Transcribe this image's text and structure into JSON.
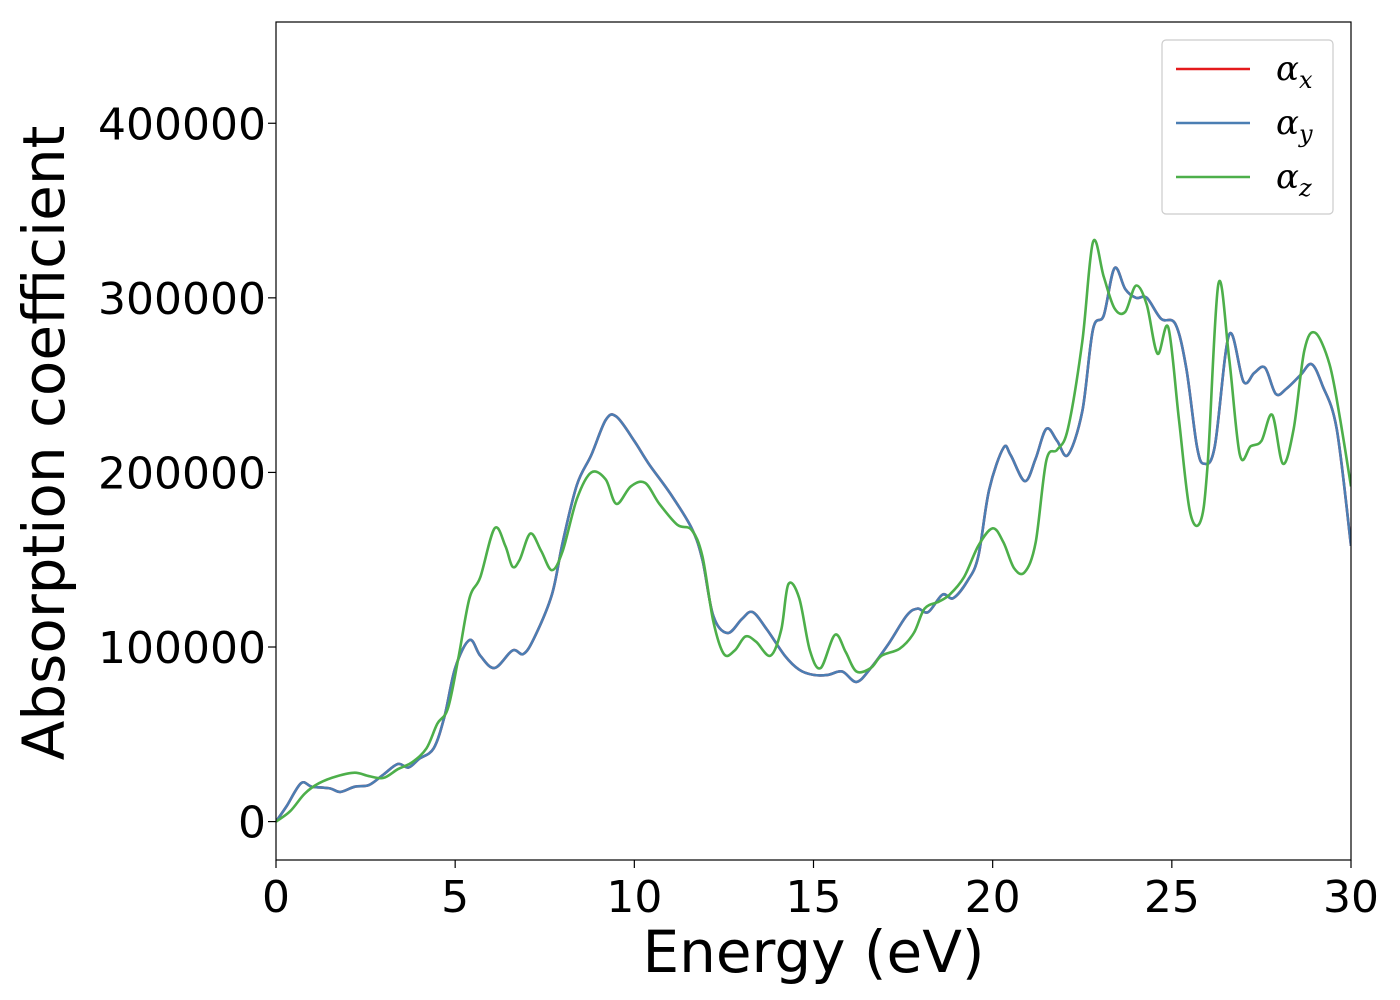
{
  "chart_data": {
    "type": "line",
    "title": "",
    "xlabel": "Energy (eV)",
    "ylabel": "Absorption coefficient",
    "xlim": [
      0,
      30
    ],
    "ylim": [
      -22000,
      458000
    ],
    "xticks": [
      0,
      5,
      10,
      15,
      20,
      25,
      30
    ],
    "yticks": [
      0,
      100000,
      200000,
      300000,
      400000
    ],
    "grid": false,
    "legend_position": "top-right",
    "series": [
      {
        "name": "α",
        "subscript": "x",
        "color": "#e41a1c",
        "points": [
          [
            0,
            0
          ],
          [
            0.3,
            9000
          ],
          [
            0.7,
            22000
          ],
          [
            1.0,
            20000
          ],
          [
            1.5,
            19000
          ],
          [
            1.8,
            17000
          ],
          [
            2.2,
            20000
          ],
          [
            2.6,
            21000
          ],
          [
            3.0,
            27000
          ],
          [
            3.4,
            33000
          ],
          [
            3.7,
            31000
          ],
          [
            4.0,
            36000
          ],
          [
            4.4,
            42000
          ],
          [
            4.7,
            60000
          ],
          [
            5.0,
            88000
          ],
          [
            5.4,
            104000
          ],
          [
            5.7,
            95000
          ],
          [
            6.1,
            88000
          ],
          [
            6.6,
            98000
          ],
          [
            6.9,
            96000
          ],
          [
            7.2,
            105000
          ],
          [
            7.7,
            130000
          ],
          [
            8.0,
            160000
          ],
          [
            8.4,
            193000
          ],
          [
            8.8,
            210000
          ],
          [
            9.2,
            230000
          ],
          [
            9.5,
            232000
          ],
          [
            10.0,
            218000
          ],
          [
            10.4,
            205000
          ],
          [
            11.0,
            188000
          ],
          [
            11.6,
            168000
          ],
          [
            11.9,
            150000
          ],
          [
            12.2,
            118000
          ],
          [
            12.6,
            108000
          ],
          [
            13.0,
            116000
          ],
          [
            13.3,
            120000
          ],
          [
            13.7,
            110000
          ],
          [
            14.2,
            95000
          ],
          [
            14.6,
            87000
          ],
          [
            15.0,
            84000
          ],
          [
            15.4,
            84000
          ],
          [
            15.8,
            86000
          ],
          [
            16.2,
            80000
          ],
          [
            16.6,
            88000
          ],
          [
            17.1,
            102000
          ],
          [
            17.6,
            118000
          ],
          [
            17.9,
            122000
          ],
          [
            18.2,
            120000
          ],
          [
            18.6,
            130000
          ],
          [
            18.9,
            128000
          ],
          [
            19.3,
            138000
          ],
          [
            19.6,
            152000
          ],
          [
            19.9,
            190000
          ],
          [
            20.3,
            214000
          ],
          [
            20.5,
            210000
          ],
          [
            20.9,
            195000
          ],
          [
            21.2,
            208000
          ],
          [
            21.5,
            225000
          ],
          [
            21.8,
            218000
          ],
          [
            22.1,
            210000
          ],
          [
            22.5,
            235000
          ],
          [
            22.8,
            282000
          ],
          [
            23.1,
            290000
          ],
          [
            23.4,
            317000
          ],
          [
            23.7,
            305000
          ],
          [
            24.0,
            300000
          ],
          [
            24.3,
            300000
          ],
          [
            24.7,
            288000
          ],
          [
            25.1,
            285000
          ],
          [
            25.4,
            260000
          ],
          [
            25.7,
            215000
          ],
          [
            25.9,
            205000
          ],
          [
            26.2,
            215000
          ],
          [
            26.6,
            279000
          ],
          [
            27.0,
            252000
          ],
          [
            27.3,
            257000
          ],
          [
            27.6,
            260000
          ],
          [
            27.9,
            245000
          ],
          [
            28.2,
            248000
          ],
          [
            28.6,
            256000
          ],
          [
            28.9,
            262000
          ],
          [
            29.2,
            250000
          ],
          [
            29.6,
            225000
          ],
          [
            30.0,
            158000
          ]
        ]
      },
      {
        "name": "α",
        "subscript": "y",
        "color": "#4b7eb3",
        "points": [
          [
            0,
            0
          ],
          [
            0.3,
            9000
          ],
          [
            0.7,
            22000
          ],
          [
            1.0,
            20000
          ],
          [
            1.5,
            19000
          ],
          [
            1.8,
            17000
          ],
          [
            2.2,
            20000
          ],
          [
            2.6,
            21000
          ],
          [
            3.0,
            27000
          ],
          [
            3.4,
            33000
          ],
          [
            3.7,
            31000
          ],
          [
            4.0,
            36000
          ],
          [
            4.4,
            42000
          ],
          [
            4.7,
            60000
          ],
          [
            5.0,
            88000
          ],
          [
            5.4,
            104000
          ],
          [
            5.7,
            95000
          ],
          [
            6.1,
            88000
          ],
          [
            6.6,
            98000
          ],
          [
            6.9,
            96000
          ],
          [
            7.2,
            105000
          ],
          [
            7.7,
            130000
          ],
          [
            8.0,
            160000
          ],
          [
            8.4,
            193000
          ],
          [
            8.8,
            210000
          ],
          [
            9.2,
            230000
          ],
          [
            9.5,
            232000
          ],
          [
            10.0,
            218000
          ],
          [
            10.4,
            205000
          ],
          [
            11.0,
            188000
          ],
          [
            11.6,
            168000
          ],
          [
            11.9,
            150000
          ],
          [
            12.2,
            118000
          ],
          [
            12.6,
            108000
          ],
          [
            13.0,
            116000
          ],
          [
            13.3,
            120000
          ],
          [
            13.7,
            110000
          ],
          [
            14.2,
            95000
          ],
          [
            14.6,
            87000
          ],
          [
            15.0,
            84000
          ],
          [
            15.4,
            84000
          ],
          [
            15.8,
            86000
          ],
          [
            16.2,
            80000
          ],
          [
            16.6,
            88000
          ],
          [
            17.1,
            102000
          ],
          [
            17.6,
            118000
          ],
          [
            17.9,
            122000
          ],
          [
            18.2,
            120000
          ],
          [
            18.6,
            130000
          ],
          [
            18.9,
            128000
          ],
          [
            19.3,
            138000
          ],
          [
            19.6,
            152000
          ],
          [
            19.9,
            190000
          ],
          [
            20.3,
            214000
          ],
          [
            20.5,
            210000
          ],
          [
            20.9,
            195000
          ],
          [
            21.2,
            208000
          ],
          [
            21.5,
            225000
          ],
          [
            21.8,
            218000
          ],
          [
            22.1,
            210000
          ],
          [
            22.5,
            235000
          ],
          [
            22.8,
            282000
          ],
          [
            23.1,
            290000
          ],
          [
            23.4,
            317000
          ],
          [
            23.7,
            305000
          ],
          [
            24.0,
            300000
          ],
          [
            24.3,
            300000
          ],
          [
            24.7,
            288000
          ],
          [
            25.1,
            285000
          ],
          [
            25.4,
            260000
          ],
          [
            25.7,
            215000
          ],
          [
            25.9,
            205000
          ],
          [
            26.2,
            215000
          ],
          [
            26.6,
            279000
          ],
          [
            27.0,
            252000
          ],
          [
            27.3,
            257000
          ],
          [
            27.6,
            260000
          ],
          [
            27.9,
            245000
          ],
          [
            28.2,
            248000
          ],
          [
            28.6,
            256000
          ],
          [
            28.9,
            262000
          ],
          [
            29.2,
            250000
          ],
          [
            29.6,
            225000
          ],
          [
            30.0,
            158000
          ]
        ]
      },
      {
        "name": "α",
        "subscript": "z",
        "color": "#4daf4a",
        "points": [
          [
            0,
            0
          ],
          [
            0.4,
            6000
          ],
          [
            0.8,
            16000
          ],
          [
            1.2,
            22000
          ],
          [
            1.7,
            26000
          ],
          [
            2.2,
            28000
          ],
          [
            2.6,
            26000
          ],
          [
            3.0,
            25000
          ],
          [
            3.4,
            30000
          ],
          [
            3.8,
            34000
          ],
          [
            4.2,
            42000
          ],
          [
            4.5,
            56000
          ],
          [
            4.8,
            65000
          ],
          [
            5.1,
            95000
          ],
          [
            5.4,
            128000
          ],
          [
            5.7,
            140000
          ],
          [
            6.1,
            168000
          ],
          [
            6.4,
            158000
          ],
          [
            6.6,
            146000
          ],
          [
            6.8,
            150000
          ],
          [
            7.1,
            165000
          ],
          [
            7.4,
            155000
          ],
          [
            7.7,
            144000
          ],
          [
            8.0,
            155000
          ],
          [
            8.4,
            185000
          ],
          [
            8.8,
            200000
          ],
          [
            9.2,
            196000
          ],
          [
            9.5,
            182000
          ],
          [
            9.9,
            192000
          ],
          [
            10.3,
            194000
          ],
          [
            10.7,
            182000
          ],
          [
            11.2,
            170000
          ],
          [
            11.6,
            167000
          ],
          [
            11.9,
            152000
          ],
          [
            12.2,
            115000
          ],
          [
            12.5,
            96000
          ],
          [
            12.8,
            98000
          ],
          [
            13.1,
            106000
          ],
          [
            13.4,
            103000
          ],
          [
            13.8,
            95000
          ],
          [
            14.1,
            110000
          ],
          [
            14.3,
            136000
          ],
          [
            14.6,
            128000
          ],
          [
            14.9,
            98000
          ],
          [
            15.2,
            88000
          ],
          [
            15.6,
            107000
          ],
          [
            15.9,
            97000
          ],
          [
            16.2,
            86000
          ],
          [
            16.6,
            88000
          ],
          [
            16.9,
            95000
          ],
          [
            17.4,
            99000
          ],
          [
            17.8,
            108000
          ],
          [
            18.1,
            122000
          ],
          [
            18.5,
            126000
          ],
          [
            18.8,
            130000
          ],
          [
            19.2,
            140000
          ],
          [
            19.6,
            158000
          ],
          [
            20.0,
            168000
          ],
          [
            20.3,
            160000
          ],
          [
            20.6,
            145000
          ],
          [
            20.9,
            143000
          ],
          [
            21.2,
            160000
          ],
          [
            21.5,
            207000
          ],
          [
            21.8,
            213000
          ],
          [
            22.1,
            225000
          ],
          [
            22.5,
            275000
          ],
          [
            22.8,
            332000
          ],
          [
            23.1,
            312000
          ],
          [
            23.4,
            294000
          ],
          [
            23.7,
            292000
          ],
          [
            24.0,
            307000
          ],
          [
            24.3,
            296000
          ],
          [
            24.6,
            268000
          ],
          [
            24.9,
            283000
          ],
          [
            25.2,
            230000
          ],
          [
            25.5,
            178000
          ],
          [
            25.8,
            172000
          ],
          [
            26.0,
            205000
          ],
          [
            26.3,
            308000
          ],
          [
            26.6,
            265000
          ],
          [
            26.9,
            210000
          ],
          [
            27.2,
            215000
          ],
          [
            27.5,
            218000
          ],
          [
            27.8,
            233000
          ],
          [
            28.1,
            205000
          ],
          [
            28.4,
            225000
          ],
          [
            28.7,
            270000
          ],
          [
            29.0,
            280000
          ],
          [
            29.4,
            262000
          ],
          [
            29.7,
            230000
          ],
          [
            30.0,
            192000
          ]
        ]
      }
    ]
  }
}
